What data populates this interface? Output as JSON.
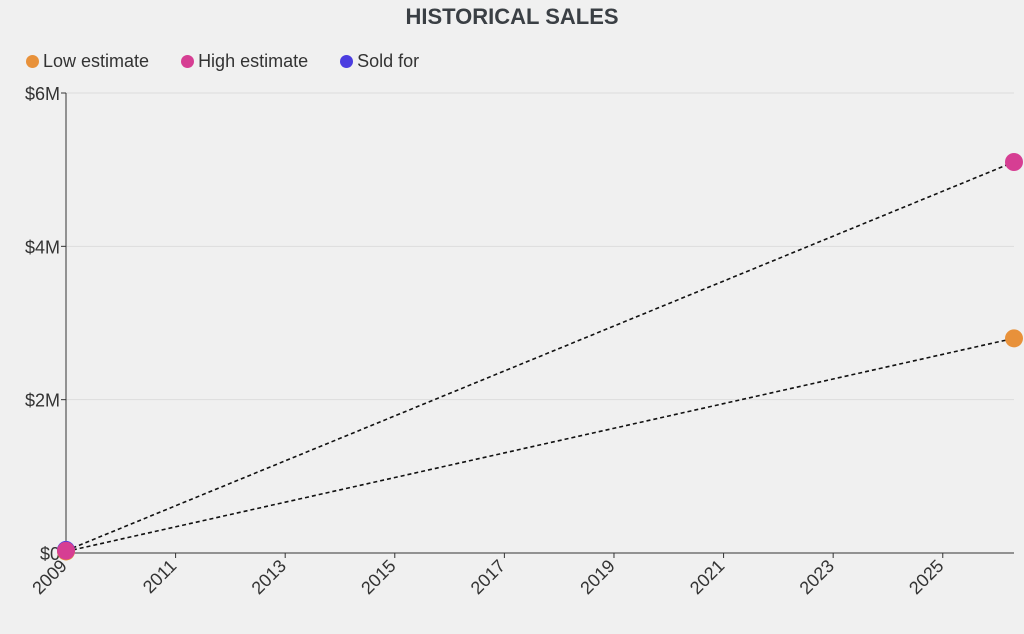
{
  "chart_data": {
    "type": "line",
    "title": "HISTORICAL SALES",
    "xlabel": "",
    "ylabel": "",
    "x_ticks": [
      "2009",
      "2011",
      "2013",
      "2015",
      "2017",
      "2019",
      "2021",
      "2023",
      "2025"
    ],
    "y_ticks": [
      "$0",
      "$2M",
      "$4M",
      "$6M"
    ],
    "xlim": [
      2009,
      2026.3
    ],
    "ylim": [
      0,
      6000000
    ],
    "grid": true,
    "legend_position": "top-left",
    "series": [
      {
        "name": "Low estimate",
        "color": "#e8913a",
        "points": [
          {
            "x": 2009,
            "y": 20000
          },
          {
            "x": 2026.3,
            "y": 2800000
          }
        ]
      },
      {
        "name": "High estimate",
        "color": "#d63e93",
        "points": [
          {
            "x": 2009,
            "y": 30000
          },
          {
            "x": 2026.3,
            "y": 5100000
          }
        ]
      },
      {
        "name": "Sold for",
        "color": "#4b3de0",
        "points": [
          {
            "x": 2009,
            "y": 40000
          }
        ]
      }
    ]
  }
}
